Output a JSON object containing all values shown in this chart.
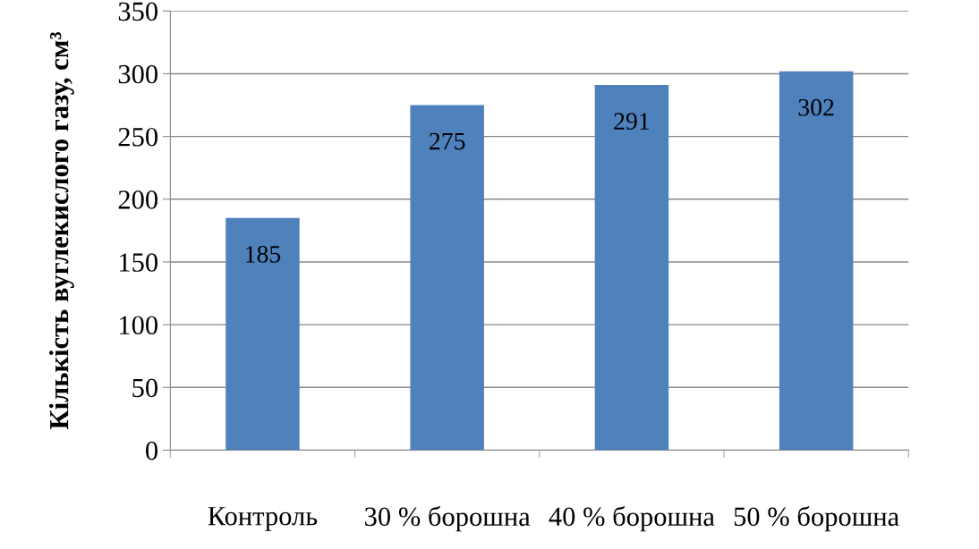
{
  "chart_data": {
    "type": "bar",
    "ylabel": "Кількість вуглекислого газу, см³",
    "categories": [
      "Контроль",
      "30 % борошна",
      "40 % борошна",
      "50 % борошна"
    ],
    "values": [
      185,
      275,
      291,
      302
    ],
    "color": "#4f81bd",
    "ylim": [
      0,
      350
    ],
    "yticks": [
      0,
      50,
      100,
      150,
      200,
      250,
      300,
      350
    ],
    "grid": "y",
    "data_labels": true
  }
}
